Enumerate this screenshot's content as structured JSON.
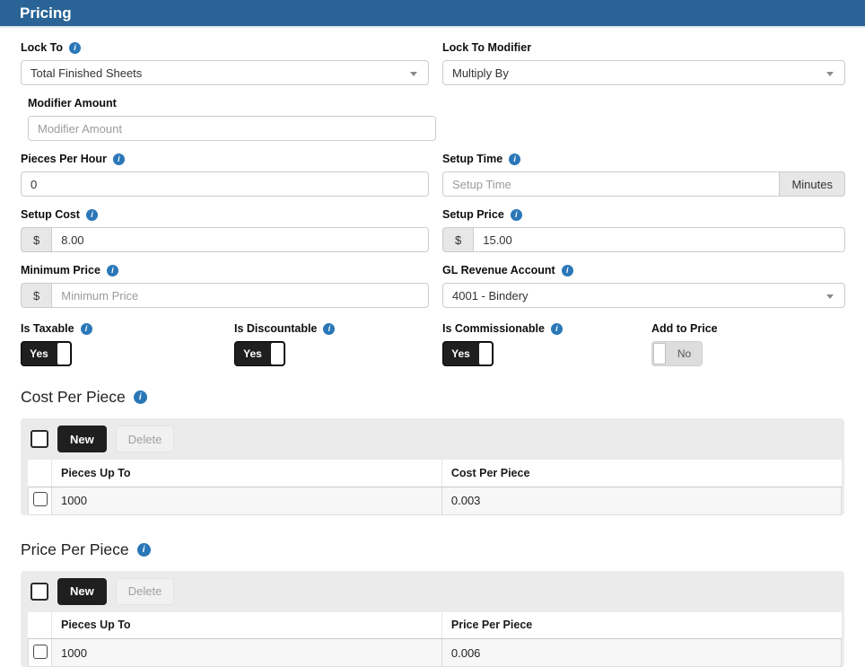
{
  "header": {
    "title": "Pricing"
  },
  "colors": {
    "header_bg": "#2a6496",
    "info_icon": "#2a77b8",
    "toggle_on_bg": "#1f1f1f",
    "toggle_off_bg": "#dddddd",
    "panel_bg": "#ebebeb",
    "button_new_bg": "#1f1f1f"
  },
  "form": {
    "lock_to": {
      "label": "Lock To",
      "value": "Total Finished Sheets"
    },
    "lock_to_modifier": {
      "label": "Lock To Modifier",
      "value": "Multiply By"
    },
    "modifier_amount": {
      "label": "Modifier Amount",
      "placeholder": "Modifier Amount",
      "value": ""
    },
    "pieces_per_hour": {
      "label": "Pieces Per Hour",
      "value": "0"
    },
    "setup_time": {
      "label": "Setup Time",
      "placeholder": "Setup Time",
      "suffix": "Minutes",
      "value": ""
    },
    "setup_cost": {
      "label": "Setup Cost",
      "prefix": "$",
      "value": "8.00"
    },
    "setup_price": {
      "label": "Setup Price",
      "prefix": "$",
      "value": "15.00"
    },
    "minimum_price": {
      "label": "Minimum Price",
      "prefix": "$",
      "placeholder": "Minimum Price",
      "value": ""
    },
    "gl_revenue_account": {
      "label": "GL Revenue Account",
      "value": "4001 - Bindery"
    },
    "toggles": [
      {
        "label": "Is Taxable",
        "state": "Yes"
      },
      {
        "label": "Is Discountable",
        "state": "Yes"
      },
      {
        "label": "Is Commissionable",
        "state": "Yes"
      },
      {
        "label": "Add to Price",
        "state": "No"
      }
    ]
  },
  "sections": [
    {
      "title": "Cost Per Piece",
      "buttons": {
        "new": "New",
        "delete": "Delete"
      },
      "columns": [
        "Pieces Up To",
        "Cost Per Piece"
      ],
      "rows": [
        [
          "1000",
          "0.003"
        ]
      ]
    },
    {
      "title": "Price Per Piece",
      "buttons": {
        "new": "New",
        "delete": "Delete"
      },
      "columns": [
        "Pieces Up To",
        "Price Per Piece"
      ],
      "rows": [
        [
          "1000",
          "0.006"
        ]
      ]
    }
  ]
}
